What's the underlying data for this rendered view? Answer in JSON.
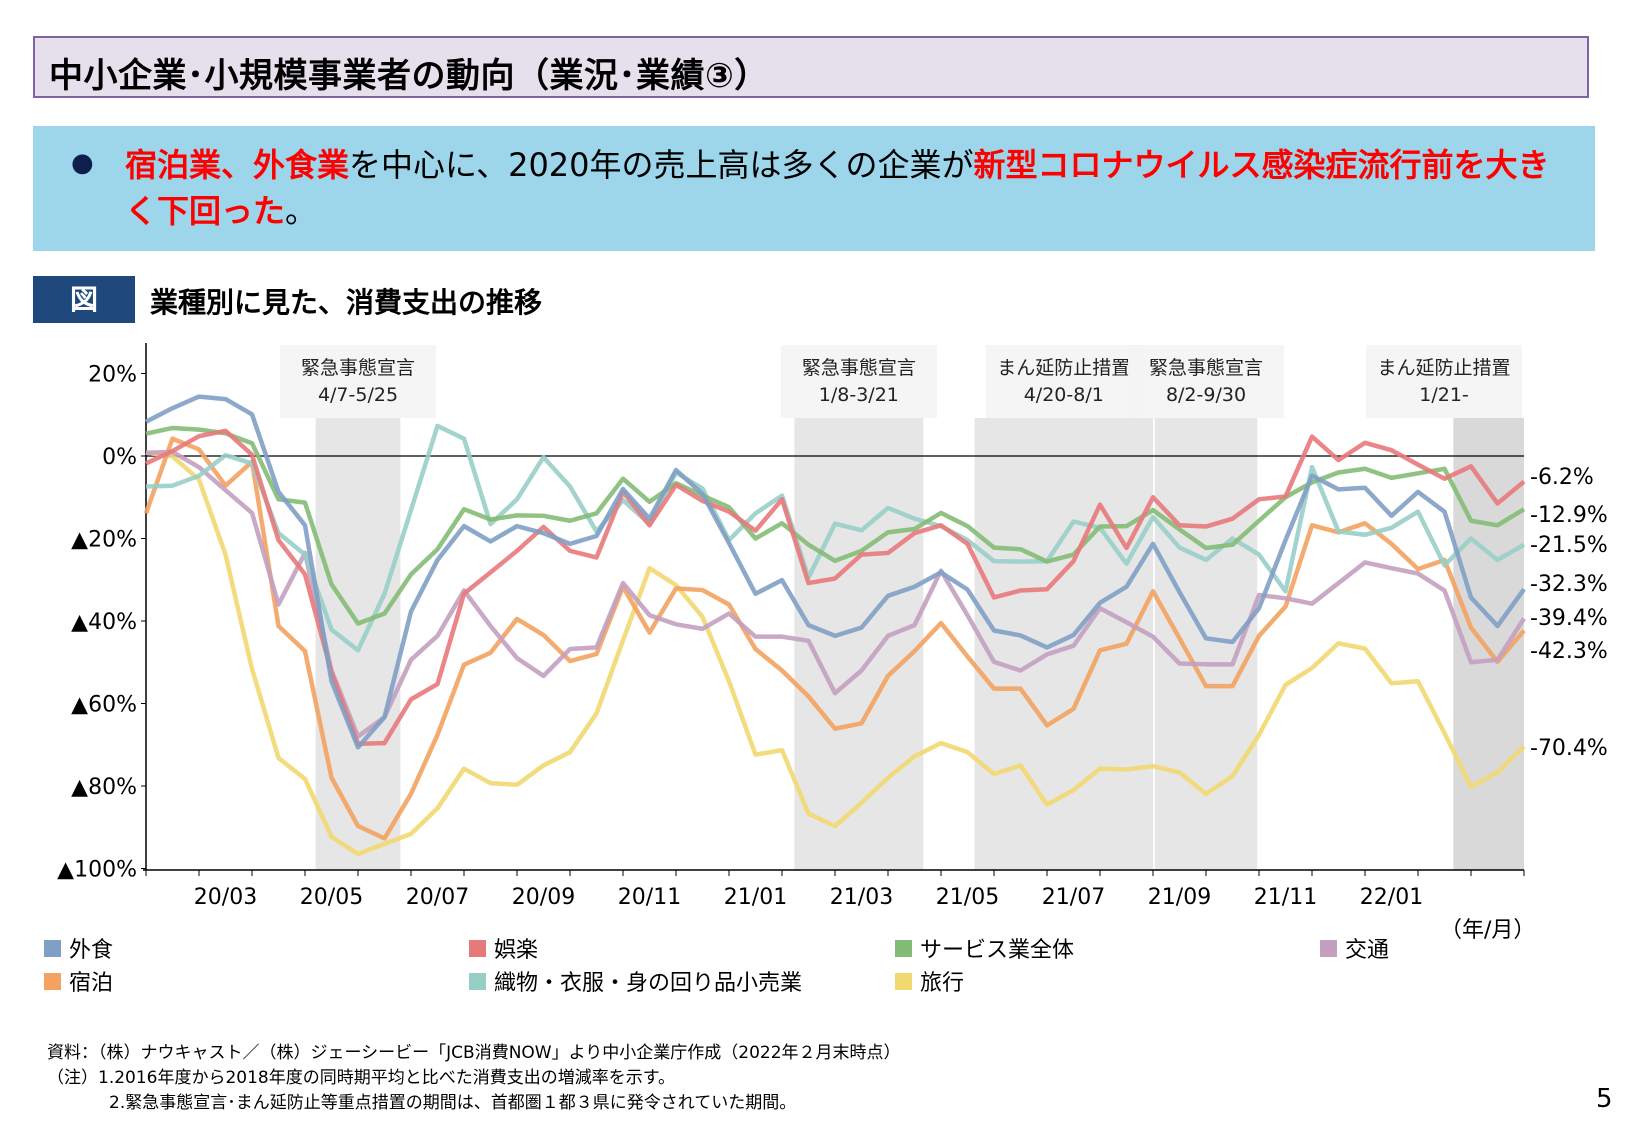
{
  "header": {
    "title": "中小企業･小規模事業者の動向（業況･業績③）"
  },
  "summary": {
    "bullet": "●",
    "parts": [
      {
        "text": "宿泊業",
        "highlight": true
      },
      {
        "text": "、",
        "highlight": false
      },
      {
        "text": "外食業",
        "highlight": true
      },
      {
        "text": "を中心に、2020年の売上高は多くの企業が",
        "highlight": false
      },
      {
        "text": "新型コロナウイルス感染症流行前を大きく下回った",
        "highlight": true
      },
      {
        "text": "。",
        "highlight": false
      }
    ]
  },
  "figure": {
    "badge": "図",
    "title": "業種別に見た、消費支出の推移"
  },
  "chart_data": {
    "type": "line",
    "x_start": "2020/01",
    "x_step": "half-month",
    "x_ticks": [
      "20/01",
      "20/02",
      "20/03",
      "20/04",
      "20/05",
      "20/06",
      "20/07",
      "20/08",
      "20/09",
      "20/10",
      "20/11",
      "20/12",
      "21/01",
      "21/02",
      "21/03",
      "21/04",
      "21/05",
      "21/06",
      "21/07",
      "21/08",
      "21/09",
      "21/10",
      "21/11",
      "21/12",
      "22/01",
      "22/02",
      "22/03"
    ],
    "x_tick_labels": [
      "20/03",
      "20/05",
      "20/07",
      "20/09",
      "20/11",
      "21/01",
      "21/03",
      "21/05",
      "21/07",
      "21/09",
      "21/11",
      "22/01"
    ],
    "xlabel": "（年/月）",
    "ylim": [
      -100,
      27
    ],
    "y_ticks": [
      20,
      0,
      -20,
      -40,
      -60,
      -80,
      -100
    ],
    "y_tick_labels": [
      "20%",
      "0%",
      "▲20%",
      "▲40%",
      "▲60%",
      "▲80%",
      "▲100%"
    ],
    "series": [
      {
        "name": "外食",
        "color": "#7f9fc4",
        "end_label": "-32.3%",
        "values": [
          8.3,
          11.6,
          14.4,
          13.8,
          10.1,
          -8.7,
          -16.8,
          -54.6,
          -70.6,
          -63.3,
          -37.7,
          -25.2,
          -17,
          -20.7,
          -17,
          -18.7,
          -21.3,
          -19.4,
          -8,
          -15.2,
          -3.4,
          -9.2,
          -21.1,
          -33.4,
          -30.1,
          -41,
          -43.6,
          -41.6,
          -33.9,
          -31.7,
          -28.2,
          -32.4,
          -42.3,
          -43.5,
          -46.4,
          -43.4,
          -35.6,
          -31.7,
          -21.3,
          -33,
          -44.2,
          -45.1,
          -36.9,
          -20.4,
          -4.8,
          -8.1,
          -7.7,
          -14.5,
          -8.7,
          -13.5,
          -34.3,
          -41.2,
          -32.3
        ]
      },
      {
        "name": "娯楽",
        "color": "#e8797b",
        "end_label": "-6.2%",
        "values": [
          -1.8,
          1.2,
          4.8,
          6.1,
          0.3,
          -20.4,
          -28.7,
          -52.5,
          -69.8,
          -69.6,
          -59,
          -55.3,
          -33.4,
          -28.2,
          -23,
          -17.2,
          -23,
          -24.6,
          -8.7,
          -16.8,
          -7,
          -10.9,
          -13.5,
          -18.1,
          -10.5,
          -30.8,
          -29.7,
          -23.9,
          -23.5,
          -18.7,
          -16.8,
          -21.3,
          -34.3,
          -32.6,
          -32.3,
          -25.5,
          -11.8,
          -22.3,
          -10,
          -16.8,
          -17.1,
          -15.2,
          -10.5,
          -9.8,
          4.7,
          -1,
          3.2,
          1.4,
          -2.1,
          -5.5,
          -2.5,
          -11.5,
          -6.2
        ]
      },
      {
        "name": "サービス業全体",
        "color": "#84bb76",
        "end_label": "-12.9%",
        "values": [
          5.4,
          6.8,
          6.4,
          5.5,
          3.1,
          -10.5,
          -11.3,
          -31.1,
          -40.6,
          -38.2,
          -28.7,
          -22.6,
          -12.9,
          -15.4,
          -14.4,
          -14.5,
          -15.7,
          -13.9,
          -5.5,
          -11.1,
          -6.6,
          -9.6,
          -12.4,
          -20,
          -16.3,
          -21.5,
          -25.4,
          -23,
          -18.5,
          -17.7,
          -13.8,
          -17,
          -22.2,
          -22.6,
          -25.6,
          -23.9,
          -17.1,
          -17,
          -13.1,
          -17.8,
          -22.3,
          -21.5,
          -15.7,
          -10,
          -6.4,
          -4,
          -3.1,
          -5.3,
          -4.2,
          -3.1,
          -15.7,
          -16.8,
          -12.9
        ]
      },
      {
        "name": "交通",
        "color": "#c3a0c0",
        "end_label": "-39.4%",
        "values": [
          0.8,
          1,
          -2.7,
          -8.3,
          -13.8,
          -36,
          -23.5,
          -52,
          -68,
          -63.3,
          -49.4,
          -43.6,
          -32.6,
          -41.2,
          -49,
          -53.3,
          -46.8,
          -46.4,
          -30.8,
          -38.6,
          -40.8,
          -41.9,
          -38.2,
          -43.8,
          -43.8,
          -44.8,
          -57.5,
          -52,
          -43.6,
          -41,
          -27.8,
          -38.6,
          -49.9,
          -52,
          -48.1,
          -46,
          -36.9,
          -40.3,
          -43.8,
          -50.3,
          -50.5,
          -50.5,
          -33.7,
          -34.5,
          -35.8,
          -30.8,
          -25.8,
          -27.2,
          -28.5,
          -32.6,
          -50,
          -49.4,
          -39.4
        ]
      },
      {
        "name": "宿泊",
        "color": "#f3a25f",
        "end_label": "-42.3%",
        "values": [
          -13.9,
          4.2,
          1.6,
          -7.2,
          -1.4,
          -41.2,
          -47.3,
          -78,
          -89.7,
          -92.7,
          -81.9,
          -67.6,
          -50.6,
          -47.7,
          -39.5,
          -43.4,
          -49.7,
          -48,
          -31.7,
          -42.8,
          -32.1,
          -32.5,
          -36,
          -46.8,
          -52,
          -58.3,
          -66.1,
          -64.8,
          -53.3,
          -47.3,
          -40.5,
          -48.6,
          -56.4,
          -56.4,
          -65.3,
          -61.3,
          -47.1,
          -45.5,
          -32.8,
          -44.2,
          -55.8,
          -55.8,
          -43.6,
          -36.5,
          -16.8,
          -18.5,
          -16.3,
          -21.3,
          -27.4,
          -25.2,
          -41.6,
          -49.9,
          -42.3
        ]
      },
      {
        "name": "織物・衣服・身の回り品小売業",
        "color": "#98cec8",
        "end_label": "-21.5%",
        "values": [
          -7.4,
          -7.2,
          -4.8,
          0.2,
          -1.8,
          -18.7,
          -23.9,
          -42.1,
          -47.1,
          -33.4,
          -13.1,
          7.3,
          4.2,
          -16.5,
          -10.5,
          -0.3,
          -7.4,
          -18.3,
          -10.7,
          -16.5,
          -4,
          -7.9,
          -20.4,
          -13.9,
          -9.6,
          -29.5,
          -16.4,
          -18,
          -12.6,
          -15.2,
          -17,
          -20.4,
          -25.5,
          -25.6,
          -25.5,
          -15.9,
          -17.4,
          -26.1,
          -14.8,
          -22.2,
          -25.2,
          -20,
          -23.9,
          -32.8,
          -2.7,
          -18.3,
          -19.1,
          -17.4,
          -13.5,
          -26.5,
          -20,
          -25.2,
          -21.5
        ]
      },
      {
        "name": "旅行",
        "color": "#f1d870",
        "end_label": "-70.4%",
        "values": [
          0.8,
          -0.1,
          -5.7,
          -23.9,
          -51.6,
          -73.2,
          -78.3,
          -92.3,
          -96.5,
          -94,
          -91.6,
          -85.4,
          -75.8,
          -79.3,
          -79.7,
          -75,
          -71.8,
          -62.4,
          -44.7,
          -27.2,
          -31.3,
          -39,
          -54.6,
          -72.4,
          -71.3,
          -86.7,
          -89.7,
          -84.1,
          -78,
          -72.8,
          -69.6,
          -71.8,
          -77.1,
          -75,
          -84.5,
          -81,
          -75.8,
          -76,
          -75.2,
          -76.7,
          -81.9,
          -77.6,
          -67.6,
          -55.5,
          -51.4,
          -45.4,
          -46.7,
          -55.1,
          -54.6,
          -67.2,
          -80.2,
          -76.7,
          -70.4
        ]
      }
    ],
    "periods": [
      {
        "label": "緊急事態宣言",
        "range": "4/7-5/25",
        "start": "2020-04-07",
        "end": "2020-05-25",
        "shade": "#e6e6e6"
      },
      {
        "label": "緊急事態宣言",
        "range": "1/8-3/21",
        "start": "2021-01-08",
        "end": "2021-03-21",
        "shade": "#e6e6e6"
      },
      {
        "label": "まん延防止措置",
        "range": "4/20-8/1",
        "start": "2021-04-20",
        "end": "2021-08-01",
        "shade": "#e6e6e6"
      },
      {
        "label": "緊急事態宣言",
        "range": "8/2-9/30",
        "start": "2021-08-02",
        "end": "2021-09-30",
        "shade": "#e6e6e6"
      },
      {
        "label": "まん延防止措置",
        "range": "1/21-",
        "start": "2022-01-21",
        "end": null,
        "shade": "#d9d9d9"
      }
    ],
    "legend_placement": "bottom",
    "grid": false
  },
  "legend": [
    {
      "label": "外食",
      "color": "#7f9fc4"
    },
    {
      "label": "娯楽",
      "color": "#e8797b"
    },
    {
      "label": "サービス業全体",
      "color": "#84bb76"
    },
    {
      "label": "交通",
      "color": "#c3a0c0"
    },
    {
      "label": "宿泊",
      "color": "#f3a25f"
    },
    {
      "label": "織物・衣服・身の回り品小売業",
      "color": "#98cec8"
    },
    {
      "label": "旅行",
      "color": "#f1d870"
    }
  ],
  "notes": {
    "source": "資料：（株）ナウキャスト／（株）ジェーシービー「JCB消費NOW」より中小企業庁作成（2022年２月末時点）",
    "note1": "（注）1.2016年度から2018年度の同時期平均と比べた消費支出の増減率を示す。",
    "note2": "2.緊急事態宣言･まん延防止等重点措置の期間は、首都圏１都３県に発令されていた期間。"
  },
  "page_number": "5"
}
